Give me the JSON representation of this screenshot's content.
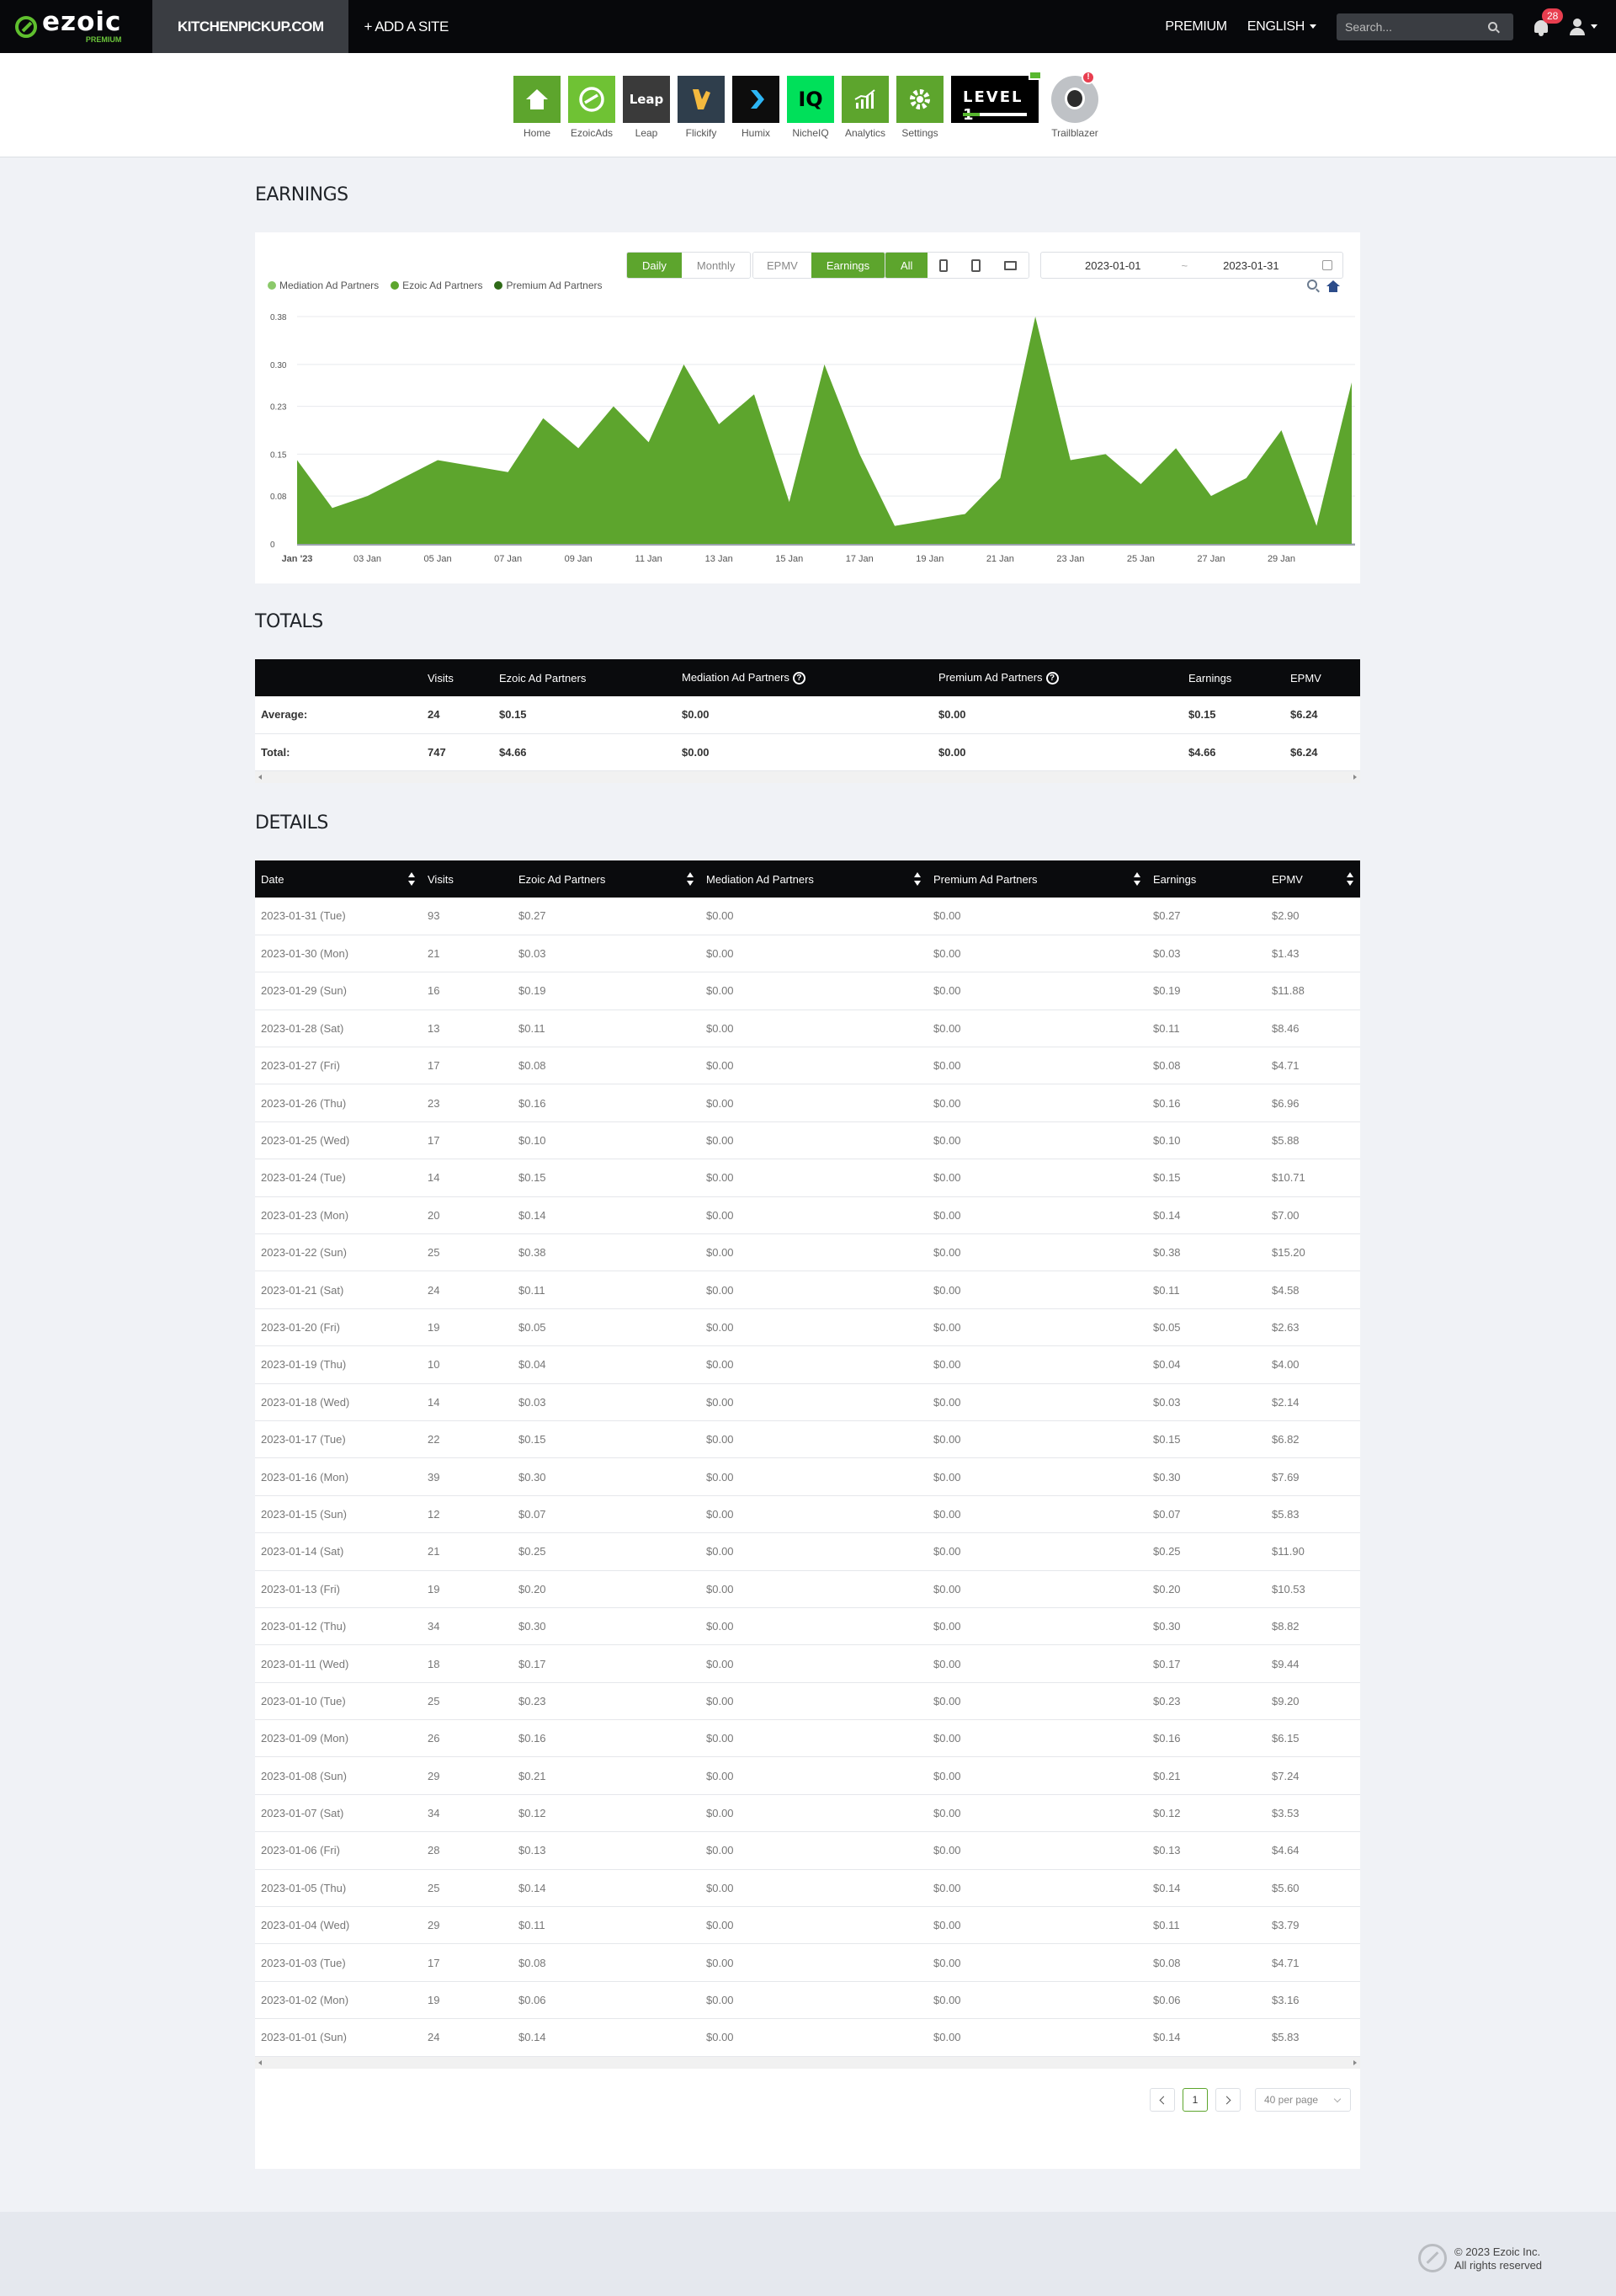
{
  "nav": {
    "logo_word": "ezoic",
    "logo_tier": "PREMIUM",
    "site": "KITCHENPICKUP.COM",
    "add_site": "+ ADD A SITE",
    "premium": "PREMIUM",
    "language": "ENGLISH",
    "search_placeholder": "Search...",
    "notifications": "28"
  },
  "apps": [
    {
      "label": "Home",
      "icon": "home-icon",
      "color": "#5da52d"
    },
    {
      "label": "EzoicAds",
      "icon": "ezoicads-icon",
      "color": "#6fc234"
    },
    {
      "label": "Leap",
      "icon": "leap-icon",
      "color": "#3a3a3a"
    },
    {
      "label": "Flickify",
      "icon": "flickify-icon",
      "color": "#2f3e4c"
    },
    {
      "label": "Humix",
      "icon": "humix-icon",
      "color": "#0d0d0d"
    },
    {
      "label": "NicheIQ",
      "icon": "nicheiq-icon",
      "color": "#00e05a"
    },
    {
      "label": "Analytics",
      "icon": "analytics-icon",
      "color": "#5da52d"
    },
    {
      "label": "Settings",
      "icon": "gear-icon",
      "color": "#5da52d"
    }
  ],
  "app_glyphs": {
    "leap": "Leap",
    "nicheiq": "IQ"
  },
  "level": {
    "label": "LEVEL 1",
    "progress": 0.26
  },
  "trailblazer": {
    "label": "Trailblazer",
    "alert": "!"
  },
  "earnings": {
    "title": "EARNINGS",
    "period_buttons": [
      "Daily",
      "Monthly"
    ],
    "metric_buttons": [
      "EPMV",
      "Earnings"
    ],
    "device_all": "All",
    "date_from": "2023-01-01",
    "date_sep": "~",
    "date_to": "2023-01-31",
    "legend": [
      {
        "name": "Mediation Ad Partners",
        "color": "#8bc96a"
      },
      {
        "name": "Ezoic Ad Partners",
        "color": "#5da52d"
      },
      {
        "name": "Premium Ad Partners",
        "color": "#2f6a17"
      }
    ]
  },
  "chart_data": {
    "type": "area",
    "yticks": [
      "0",
      "0.08",
      "0.15",
      "0.23",
      "0.30",
      "0.38"
    ],
    "ylim": [
      0,
      0.38
    ],
    "xticks": [
      {
        "day": 1,
        "label": "Jan '23"
      },
      {
        "day": 3,
        "label": "03 Jan"
      },
      {
        "day": 5,
        "label": "05 Jan"
      },
      {
        "day": 7,
        "label": "07 Jan"
      },
      {
        "day": 9,
        "label": "09 Jan"
      },
      {
        "day": 11,
        "label": "11 Jan"
      },
      {
        "day": 13,
        "label": "13 Jan"
      },
      {
        "day": 15,
        "label": "15 Jan"
      },
      {
        "day": 17,
        "label": "17 Jan"
      },
      {
        "day": 19,
        "label": "19 Jan"
      },
      {
        "day": 21,
        "label": "21 Jan"
      },
      {
        "day": 23,
        "label": "23 Jan"
      },
      {
        "day": 25,
        "label": "25 Jan"
      },
      {
        "day": 27,
        "label": "27 Jan"
      },
      {
        "day": 29,
        "label": "29 Jan"
      }
    ],
    "series": [
      {
        "name": "Ezoic Ad Partners",
        "color": "#5da52d",
        "x": [
          1,
          2,
          3,
          4,
          5,
          6,
          7,
          8,
          9,
          10,
          11,
          12,
          13,
          14,
          15,
          16,
          17,
          18,
          19,
          20,
          21,
          22,
          23,
          24,
          25,
          26,
          27,
          28,
          29,
          30,
          31
        ],
        "values": [
          0.14,
          0.06,
          0.08,
          0.11,
          0.14,
          0.13,
          0.12,
          0.21,
          0.16,
          0.23,
          0.17,
          0.3,
          0.2,
          0.25,
          0.07,
          0.3,
          0.15,
          0.03,
          0.04,
          0.05,
          0.11,
          0.38,
          0.14,
          0.15,
          0.1,
          0.16,
          0.08,
          0.11,
          0.19,
          0.03,
          0.27
        ]
      }
    ]
  },
  "totals": {
    "title": "TOTALS",
    "headers": [
      "",
      "Visits",
      "Ezoic Ad Partners",
      "Mediation Ad Partners",
      "Premium Ad Partners",
      "Earnings",
      "EPMV"
    ],
    "rows": [
      [
        "Average:",
        "24",
        "$0.15",
        "$0.00",
        "$0.00",
        "$0.15",
        "$6.24"
      ],
      [
        "Total:",
        "747",
        "$4.66",
        "$0.00",
        "$0.00",
        "$4.66",
        "$6.24"
      ]
    ]
  },
  "details": {
    "title": "DETAILS",
    "headers": [
      "Date",
      "Visits",
      "Ezoic Ad Partners",
      "Mediation Ad Partners",
      "Premium Ad Partners",
      "Earnings",
      "EPMV"
    ],
    "rows": [
      [
        "2023-01-31 (Tue)",
        "93",
        "$0.27",
        "$0.00",
        "$0.00",
        "$0.27",
        "$2.90"
      ],
      [
        "2023-01-30 (Mon)",
        "21",
        "$0.03",
        "$0.00",
        "$0.00",
        "$0.03",
        "$1.43"
      ],
      [
        "2023-01-29 (Sun)",
        "16",
        "$0.19",
        "$0.00",
        "$0.00",
        "$0.19",
        "$11.88"
      ],
      [
        "2023-01-28 (Sat)",
        "13",
        "$0.11",
        "$0.00",
        "$0.00",
        "$0.11",
        "$8.46"
      ],
      [
        "2023-01-27 (Fri)",
        "17",
        "$0.08",
        "$0.00",
        "$0.00",
        "$0.08",
        "$4.71"
      ],
      [
        "2023-01-26 (Thu)",
        "23",
        "$0.16",
        "$0.00",
        "$0.00",
        "$0.16",
        "$6.96"
      ],
      [
        "2023-01-25 (Wed)",
        "17",
        "$0.10",
        "$0.00",
        "$0.00",
        "$0.10",
        "$5.88"
      ],
      [
        "2023-01-24 (Tue)",
        "14",
        "$0.15",
        "$0.00",
        "$0.00",
        "$0.15",
        "$10.71"
      ],
      [
        "2023-01-23 (Mon)",
        "20",
        "$0.14",
        "$0.00",
        "$0.00",
        "$0.14",
        "$7.00"
      ],
      [
        "2023-01-22 (Sun)",
        "25",
        "$0.38",
        "$0.00",
        "$0.00",
        "$0.38",
        "$15.20"
      ],
      [
        "2023-01-21 (Sat)",
        "24",
        "$0.11",
        "$0.00",
        "$0.00",
        "$0.11",
        "$4.58"
      ],
      [
        "2023-01-20 (Fri)",
        "19",
        "$0.05",
        "$0.00",
        "$0.00",
        "$0.05",
        "$2.63"
      ],
      [
        "2023-01-19 (Thu)",
        "10",
        "$0.04",
        "$0.00",
        "$0.00",
        "$0.04",
        "$4.00"
      ],
      [
        "2023-01-18 (Wed)",
        "14",
        "$0.03",
        "$0.00",
        "$0.00",
        "$0.03",
        "$2.14"
      ],
      [
        "2023-01-17 (Tue)",
        "22",
        "$0.15",
        "$0.00",
        "$0.00",
        "$0.15",
        "$6.82"
      ],
      [
        "2023-01-16 (Mon)",
        "39",
        "$0.30",
        "$0.00",
        "$0.00",
        "$0.30",
        "$7.69"
      ],
      [
        "2023-01-15 (Sun)",
        "12",
        "$0.07",
        "$0.00",
        "$0.00",
        "$0.07",
        "$5.83"
      ],
      [
        "2023-01-14 (Sat)",
        "21",
        "$0.25",
        "$0.00",
        "$0.00",
        "$0.25",
        "$11.90"
      ],
      [
        "2023-01-13 (Fri)",
        "19",
        "$0.20",
        "$0.00",
        "$0.00",
        "$0.20",
        "$10.53"
      ],
      [
        "2023-01-12 (Thu)",
        "34",
        "$0.30",
        "$0.00",
        "$0.00",
        "$0.30",
        "$8.82"
      ],
      [
        "2023-01-11 (Wed)",
        "18",
        "$0.17",
        "$0.00",
        "$0.00",
        "$0.17",
        "$9.44"
      ],
      [
        "2023-01-10 (Tue)",
        "25",
        "$0.23",
        "$0.00",
        "$0.00",
        "$0.23",
        "$9.20"
      ],
      [
        "2023-01-09 (Mon)",
        "26",
        "$0.16",
        "$0.00",
        "$0.00",
        "$0.16",
        "$6.15"
      ],
      [
        "2023-01-08 (Sun)",
        "29",
        "$0.21",
        "$0.00",
        "$0.00",
        "$0.21",
        "$7.24"
      ],
      [
        "2023-01-07 (Sat)",
        "34",
        "$0.12",
        "$0.00",
        "$0.00",
        "$0.12",
        "$3.53"
      ],
      [
        "2023-01-06 (Fri)",
        "28",
        "$0.13",
        "$0.00",
        "$0.00",
        "$0.13",
        "$4.64"
      ],
      [
        "2023-01-05 (Thu)",
        "25",
        "$0.14",
        "$0.00",
        "$0.00",
        "$0.14",
        "$5.60"
      ],
      [
        "2023-01-04 (Wed)",
        "29",
        "$0.11",
        "$0.00",
        "$0.00",
        "$0.11",
        "$3.79"
      ],
      [
        "2023-01-03 (Tue)",
        "17",
        "$0.08",
        "$0.00",
        "$0.00",
        "$0.08",
        "$4.71"
      ],
      [
        "2023-01-02 (Mon)",
        "19",
        "$0.06",
        "$0.00",
        "$0.00",
        "$0.06",
        "$3.16"
      ],
      [
        "2023-01-01 (Sun)",
        "24",
        "$0.14",
        "$0.00",
        "$0.00",
        "$0.14",
        "$5.83"
      ]
    ]
  },
  "pagination": {
    "current": "1",
    "per_page": "40 per page"
  },
  "footer": {
    "copyright": "© 2023 Ezoic Inc.",
    "rights": "All rights reserved"
  }
}
